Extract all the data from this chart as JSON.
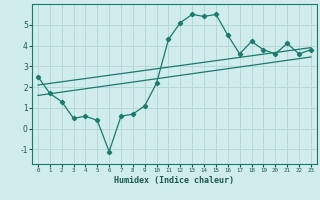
{
  "title": "",
  "xlabel": "Humidex (Indice chaleur)",
  "ylabel": "",
  "bg_color": "#d0ecec",
  "line_color": "#1a7a6e",
  "grid_color": "#b8d8d8",
  "xlim": [
    -0.5,
    23.5
  ],
  "ylim": [
    -1.7,
    6.0
  ],
  "xticks": [
    0,
    1,
    2,
    3,
    4,
    5,
    6,
    7,
    8,
    9,
    10,
    11,
    12,
    13,
    14,
    15,
    16,
    17,
    18,
    19,
    20,
    21,
    22,
    23
  ],
  "yticks": [
    -1,
    0,
    1,
    2,
    3,
    4,
    5
  ],
  "main_line": {
    "x": [
      0,
      1,
      2,
      3,
      4,
      5,
      6,
      7,
      8,
      9,
      10,
      11,
      12,
      13,
      14,
      15,
      16,
      17,
      18,
      19,
      20,
      21,
      22,
      23
    ],
    "y": [
      2.5,
      1.7,
      1.3,
      0.5,
      0.6,
      0.4,
      -1.1,
      0.6,
      0.7,
      1.1,
      2.2,
      4.3,
      5.1,
      5.5,
      5.4,
      5.5,
      4.5,
      3.6,
      4.2,
      3.8,
      3.6,
      4.1,
      3.6,
      3.8
    ]
  },
  "upper_trend": {
    "x": [
      0,
      23
    ],
    "y": [
      2.1,
      3.9
    ]
  },
  "lower_trend": {
    "x": [
      0,
      23
    ],
    "y": [
      1.6,
      3.45
    ]
  }
}
